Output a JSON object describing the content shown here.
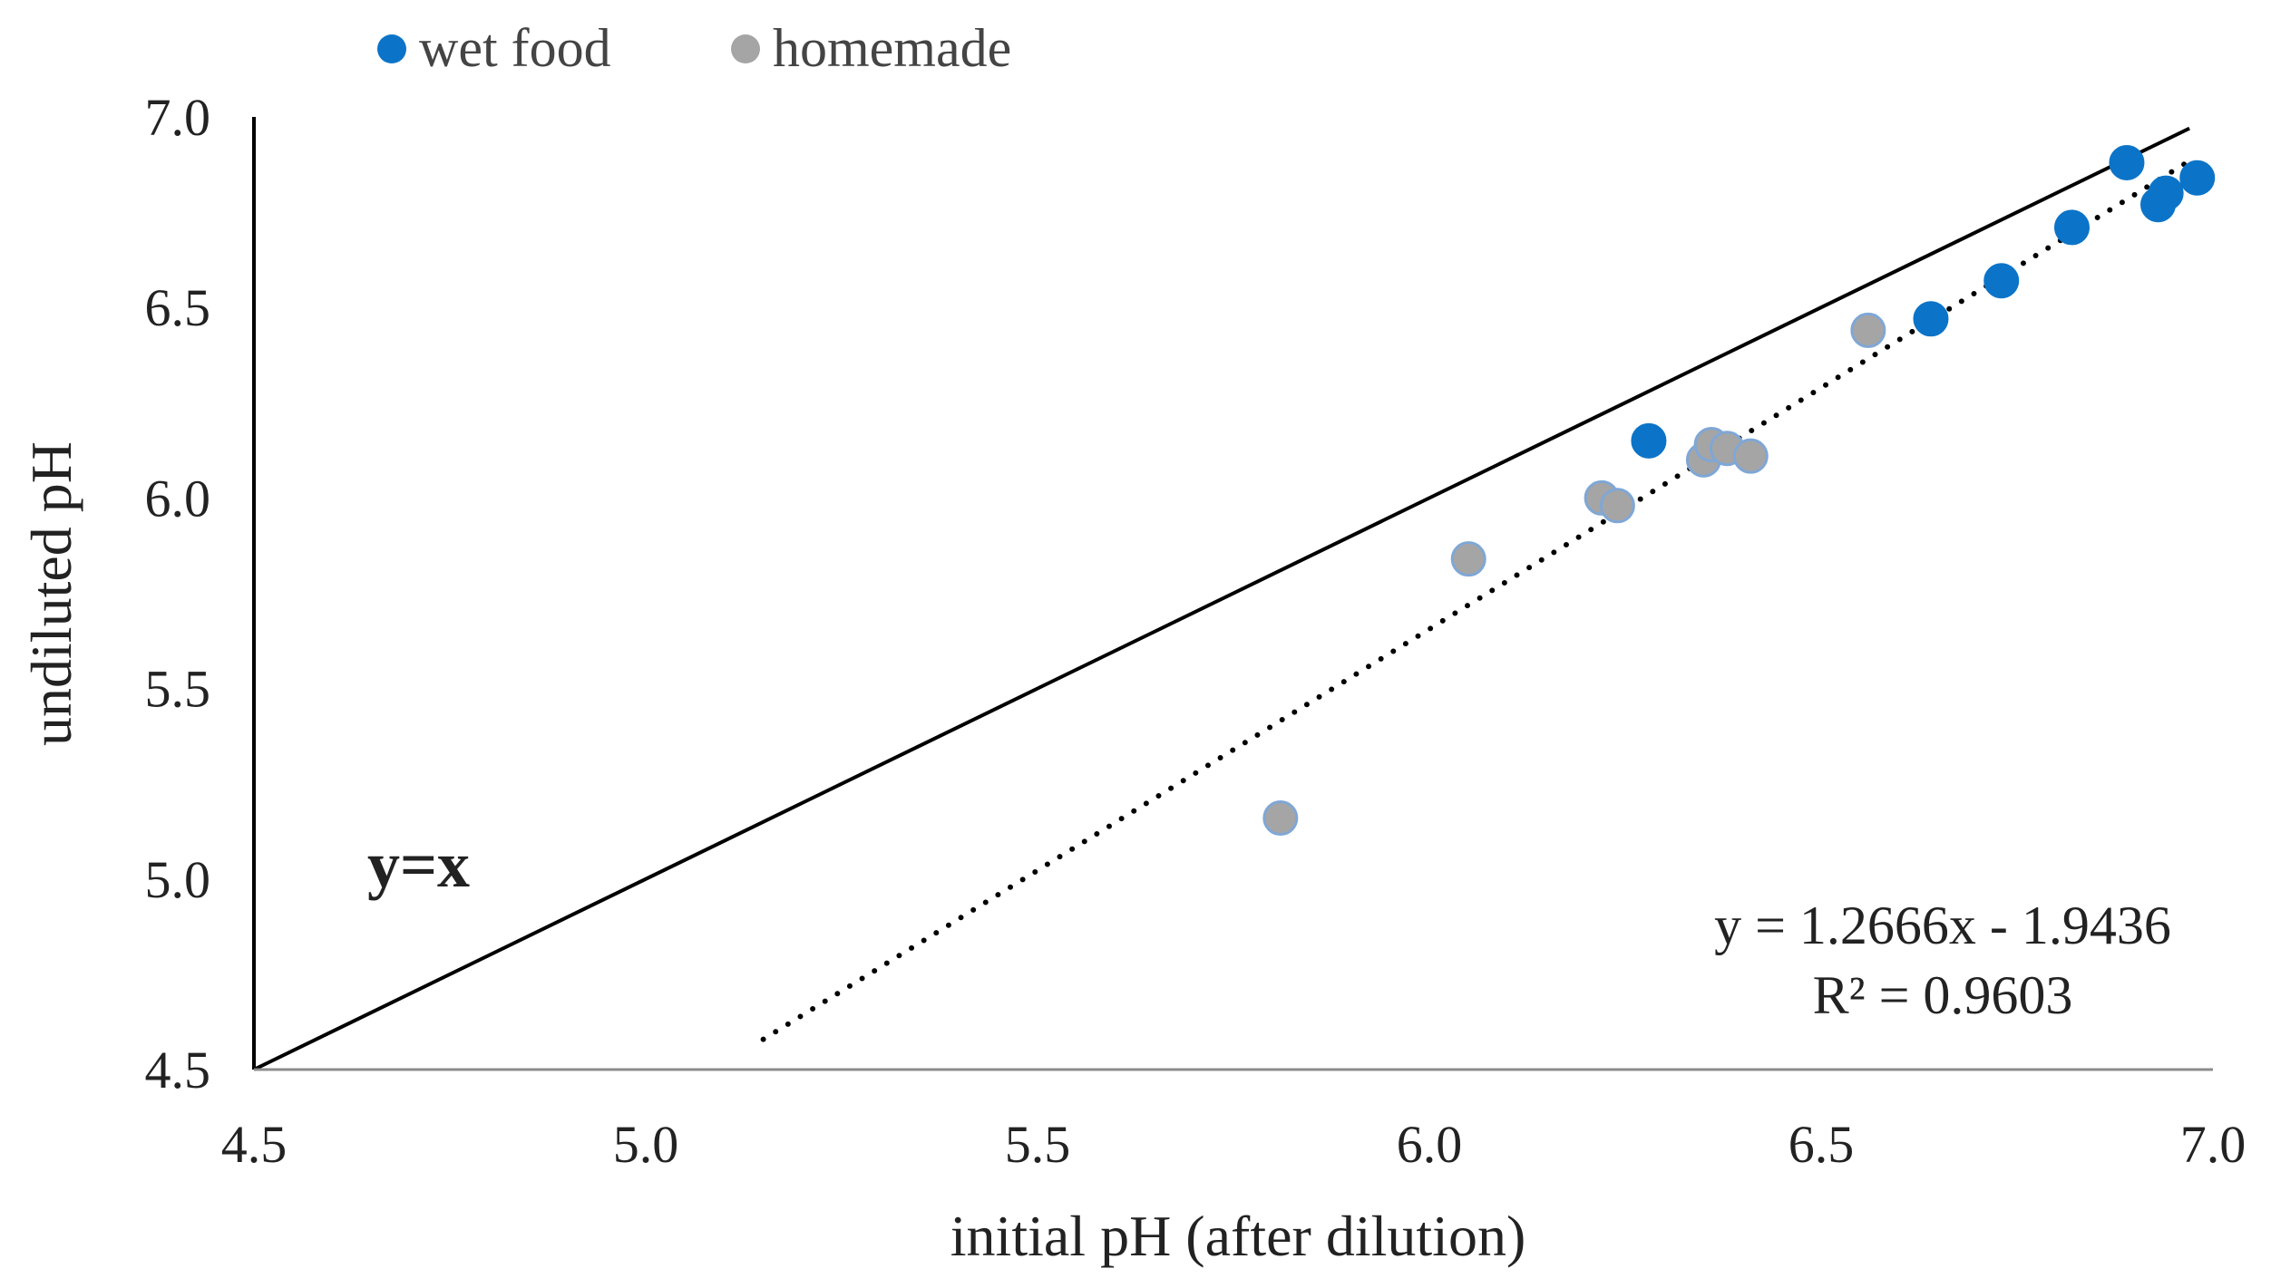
{
  "chart_data": {
    "type": "scatter",
    "title": "",
    "xlabel": "initial pH (after dilution)",
    "ylabel": "undiluted pH",
    "xlim": [
      4.5,
      7.0
    ],
    "ylim": [
      4.5,
      7.0
    ],
    "x_ticks": [
      "4.5",
      "5.0",
      "5.5",
      "6.0",
      "6.5",
      "7.0"
    ],
    "y_ticks": [
      "4.5",
      "5.0",
      "5.5",
      "6.0",
      "6.5",
      "7.0"
    ],
    "legend_position": "top-left",
    "series": [
      {
        "name": "wet food",
        "color": "#0b74c8",
        "points": [
          [
            6.28,
            6.15
          ],
          [
            6.64,
            6.47
          ],
          [
            6.73,
            6.57
          ],
          [
            6.82,
            6.71
          ],
          [
            6.89,
            6.88
          ],
          [
            6.93,
            6.77
          ],
          [
            6.94,
            6.8
          ],
          [
            6.98,
            6.84
          ]
        ]
      },
      {
        "name": "homemade",
        "color": "#a5a5a5",
        "points": [
          [
            5.81,
            5.16
          ],
          [
            6.05,
            5.84
          ],
          [
            6.22,
            6.0
          ],
          [
            6.24,
            5.98
          ],
          [
            6.35,
            6.1
          ],
          [
            6.36,
            6.14
          ],
          [
            6.38,
            6.13
          ],
          [
            6.41,
            6.11
          ],
          [
            6.56,
            6.44
          ]
        ]
      }
    ],
    "reference_line": {
      "label": "y=x",
      "slope": 1,
      "intercept": 0,
      "x_range": [
        4.5,
        6.97
      ],
      "color": "#000000"
    },
    "trendline": {
      "slope": 1.2666,
      "intercept": -1.9436,
      "x_range": [
        5.15,
        6.97
      ],
      "equation": "y = 1.2666x  - 1.9436",
      "r_squared": "R² = 0.9603",
      "style": "dotted",
      "color": "#000000"
    }
  }
}
